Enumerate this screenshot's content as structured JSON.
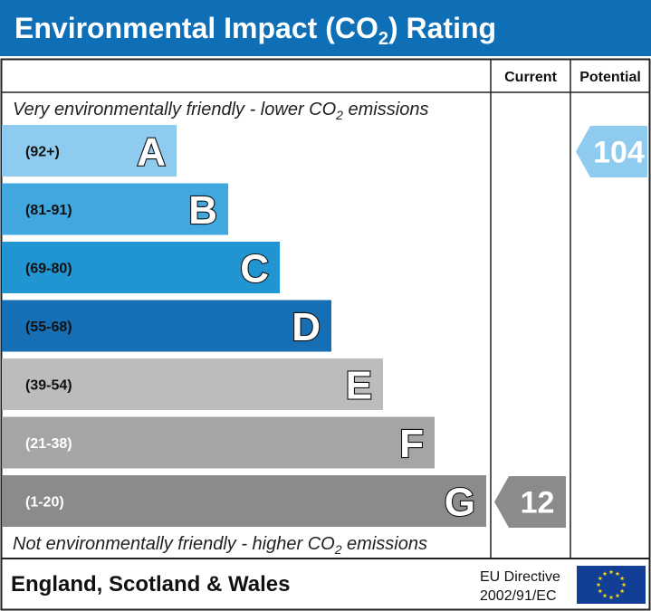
{
  "title": {
    "main": "Environmental Impact (CO",
    "sub": "2",
    "tail": ") Rating"
  },
  "columns": {
    "current": "Current",
    "potential": "Potential"
  },
  "captions": {
    "top": {
      "main": "Very environmentally friendly - lower CO",
      "sub": "2",
      "tail": " emissions"
    },
    "bottom": {
      "main": "Not environmentally friendly - higher CO",
      "sub": "2",
      "tail": " emissions"
    }
  },
  "chart_data": {
    "type": "bar",
    "categories": [
      "A",
      "B",
      "C",
      "D",
      "E",
      "F",
      "G"
    ],
    "bands": [
      {
        "letter": "A",
        "range": "(92+)",
        "min": 92,
        "max": null,
        "color": "#8ecbee",
        "text_color": "#111111"
      },
      {
        "letter": "B",
        "range": "(81-91)",
        "min": 81,
        "max": 91,
        "color": "#41a8df",
        "text_color": "#111111"
      },
      {
        "letter": "C",
        "range": "(69-80)",
        "min": 69,
        "max": 80,
        "color": "#2194d2",
        "text_color": "#111111"
      },
      {
        "letter": "D",
        "range": "(55-68)",
        "min": 55,
        "max": 68,
        "color": "#166fb5",
        "text_color": "#111111"
      },
      {
        "letter": "E",
        "range": "(39-54)",
        "min": 39,
        "max": 54,
        "color": "#bcbcbc",
        "text_color": "#111111"
      },
      {
        "letter": "F",
        "range": "(21-38)",
        "min": 21,
        "max": 38,
        "color": "#a5a5a5",
        "text_color": "#ffffff"
      },
      {
        "letter": "G",
        "range": "(1-20)",
        "min": 1,
        "max": 20,
        "color": "#8b8b8b",
        "text_color": "#ffffff"
      }
    ],
    "current": {
      "value": 12,
      "band": "G",
      "color": "#8b8b8b"
    },
    "potential": {
      "value": 104,
      "band": "A",
      "color": "#8ecbee"
    }
  },
  "footer": {
    "region": "England, Scotland & Wales",
    "directive_line1": "EU Directive",
    "directive_line2": "2002/91/EC"
  },
  "colors": {
    "header_bg": "#0e6eb6",
    "border": "#222222",
    "flag_bg": "#123f95",
    "flag_star": "#f5d90a"
  },
  "icons": {
    "flag": "eu-flag-icon"
  }
}
